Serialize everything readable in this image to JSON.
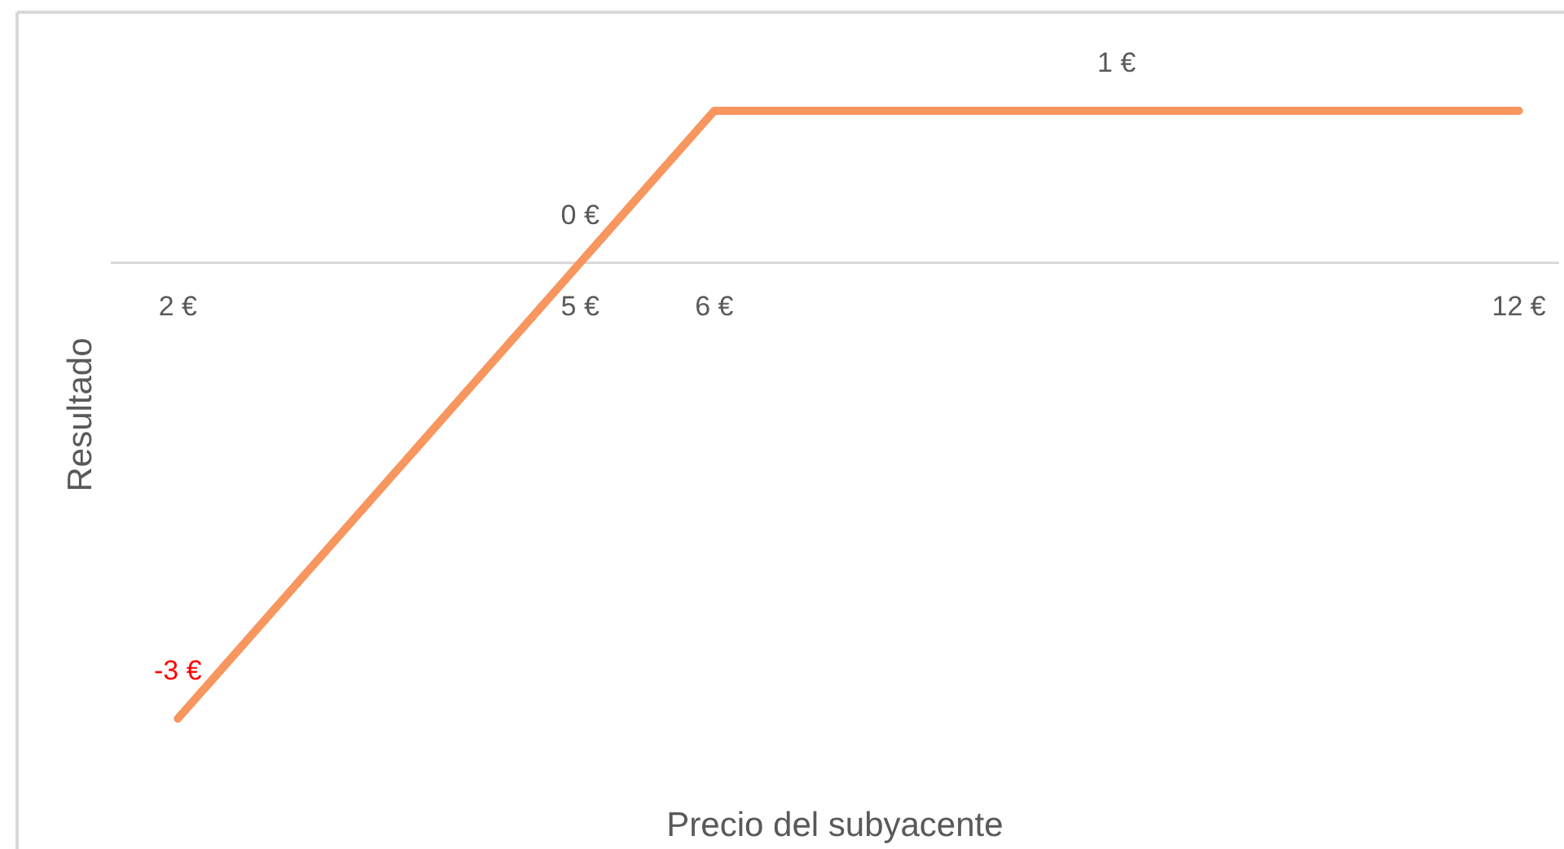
{
  "chart_data": {
    "type": "line",
    "xlabel": "Precio del subyacente",
    "ylabel": "Resultado",
    "x": [
      2,
      5,
      6,
      9,
      12
    ],
    "values": [
      -3,
      0,
      1,
      1,
      1
    ],
    "value_labels": [
      "-3 €",
      "0 €",
      null,
      "1 €",
      null
    ],
    "color": "#f8965f",
    "line_style": "solid",
    "xlim": [
      1.5,
      12.3
    ],
    "xticks": [
      {
        "value": 2,
        "label": "2 €"
      },
      {
        "value": 5,
        "label": "5 €"
      },
      {
        "value": 6,
        "label": "6 €"
      },
      {
        "value": 12,
        "label": "12 €"
      }
    ],
    "tick_labels": "x"
  }
}
